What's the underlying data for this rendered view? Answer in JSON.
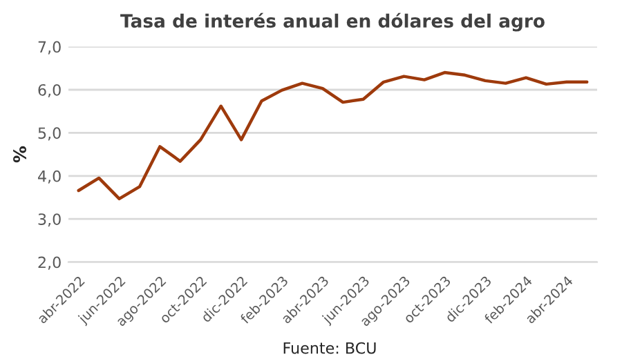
{
  "chart_data": {
    "type": "line",
    "title": "Tasa de interés anual en dólares del agro",
    "ylabel": "%",
    "categories": [
      "abr-2022",
      null,
      "jun-2022",
      null,
      "ago-2022",
      null,
      "oct-2022",
      null,
      "dic-2022",
      null,
      "feb-2023",
      null,
      "abr-2023",
      null,
      "jun-2023",
      null,
      "ago-2023",
      null,
      "oct-2023",
      null,
      "dic-2023",
      null,
      "feb-2024",
      null,
      "abr-2024",
      null
    ],
    "series": [
      {
        "color": "#9e3a0c",
        "values": [
          3.66,
          3.95,
          3.47,
          3.75,
          4.68,
          4.34,
          4.84,
          5.62,
          4.84,
          5.74,
          5.99,
          6.15,
          6.03,
          5.71,
          5.78,
          6.18,
          6.31,
          6.23,
          6.4,
          6.34,
          6.21,
          6.15,
          6.28,
          6.13,
          6.18,
          6.18
        ]
      }
    ],
    "ylim": [
      2,
      7
    ],
    "yticks": [
      {
        "value": 2,
        "label": "2,0"
      },
      {
        "value": 3,
        "label": "3,0"
      },
      {
        "value": 4,
        "label": "4,0"
      },
      {
        "value": 5,
        "label": "5,0"
      },
      {
        "value": 6,
        "label": "6,0"
      },
      {
        "value": 7,
        "label": "7,0"
      }
    ],
    "grid": "y",
    "legend": false,
    "marker": "none",
    "line_style": "solid",
    "annotations": [
      "Fuente: BCU"
    ]
  }
}
